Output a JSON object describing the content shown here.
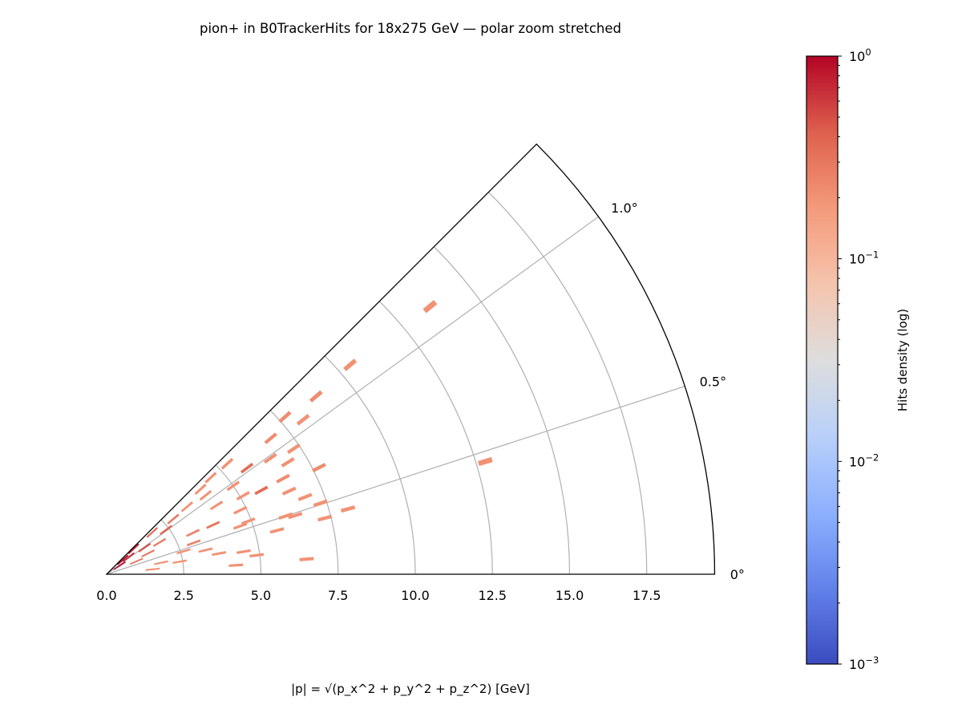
{
  "chart_data": {
    "type": "heatmap",
    "projection": "polar (wedge, angle stretched)",
    "title": "pion+ in B0TrackerHits for 18x275 GeV — polar zoom stretched",
    "xlabel": "|p| = √(p_x^2 + p_y^2 + p_z^2) [GeV]",
    "r_range": [
      0,
      19.7
    ],
    "theta_range_deg": [
      0,
      1.25
    ],
    "r_ticks": [
      "0.0",
      "2.5",
      "5.0",
      "7.5",
      "10.0",
      "12.5",
      "15.0",
      "17.5"
    ],
    "r_tick_values": [
      0,
      2.5,
      5,
      7.5,
      10,
      12.5,
      15,
      17.5
    ],
    "theta_ticks": [
      "0°",
      "0.5°",
      "1.0°"
    ],
    "theta_tick_values": [
      0,
      0.5,
      1.0
    ],
    "grid": true,
    "colorbar": {
      "label": "Hits density (log)",
      "colormap": "coolwarm",
      "scale": "log",
      "range": [
        0.001,
        1
      ],
      "ticks": [
        {
          "value": 1,
          "base": "10",
          "exp": "0"
        },
        {
          "value": 0.1,
          "base": "10",
          "exp": "−1"
        },
        {
          "value": 0.01,
          "base": "10",
          "exp": "−2"
        },
        {
          "value": 0.001,
          "base": "10",
          "exp": "−3"
        }
      ],
      "placement": "right"
    },
    "cells": [
      {
        "p": 13.6,
        "theta": 1.1,
        "d": 0.2
      },
      {
        "p": 10.4,
        "theta": 1.13,
        "d": 0.2
      },
      {
        "p": 8.9,
        "theta": 1.12,
        "d": 0.22
      },
      {
        "p": 7.7,
        "theta": 1.15,
        "d": 0.22
      },
      {
        "p": 8.1,
        "theta": 1.06,
        "d": 0.2
      },
      {
        "p": 6.9,
        "theta": 1.1,
        "d": 0.22
      },
      {
        "p": 7.3,
        "theta": 0.94,
        "d": 0.2
      },
      {
        "p": 6.9,
        "theta": 0.88,
        "d": 0.2
      },
      {
        "p": 7.7,
        "theta": 0.74,
        "d": 0.22
      },
      {
        "p": 6.5,
        "theta": 0.98,
        "d": 0.2
      },
      {
        "p": 5.7,
        "theta": 1.03,
        "d": 0.35
      },
      {
        "p": 5.3,
        "theta": 1.18,
        "d": 0.2
      },
      {
        "p": 6.5,
        "theta": 0.79,
        "d": 0.22
      },
      {
        "p": 6.5,
        "theta": 0.68,
        "d": 0.2
      },
      {
        "p": 6.9,
        "theta": 0.59,
        "d": 0.2
      },
      {
        "p": 7.3,
        "theta": 0.51,
        "d": 0.2
      },
      {
        "p": 8.1,
        "theta": 0.42,
        "d": 0.2
      },
      {
        "p": 7.3,
        "theta": 0.4,
        "d": 0.2
      },
      {
        "p": 12.8,
        "theta": 0.46,
        "d": 0.2
      },
      {
        "p": 6.4,
        "theta": 0.48,
        "d": 0.2
      },
      {
        "p": 6.1,
        "theta": 0.5,
        "d": 0.2
      },
      {
        "p": 5.7,
        "theta": 0.4,
        "d": 0.2
      },
      {
        "p": 5.7,
        "theta": 0.79,
        "d": 0.35
      },
      {
        "p": 5.1,
        "theta": 0.83,
        "d": 0.2
      },
      {
        "p": 4.8,
        "theta": 0.71,
        "d": 0.2
      },
      {
        "p": 4.9,
        "theta": 0.57,
        "d": 0.2
      },
      {
        "p": 3.8,
        "theta": 0.69,
        "d": 0.3
      },
      {
        "p": 4.6,
        "theta": 0.55,
        "d": 0.2
      },
      {
        "p": 6.5,
        "theta": 0.12,
        "d": 0.2
      },
      {
        "p": 4.9,
        "theta": 0.2,
        "d": 0.2
      },
      {
        "p": 4.2,
        "theta": 0.11,
        "d": 0.2
      },
      {
        "p": 4.5,
        "theta": 0.26,
        "d": 0.2
      },
      {
        "p": 3.7,
        "theta": 0.29,
        "d": 0.2
      },
      {
        "p": 3.3,
        "theta": 0.38,
        "d": 0.2
      },
      {
        "p": 2.6,
        "theta": 0.46,
        "d": 0.2
      },
      {
        "p": 3.1,
        "theta": 0.71,
        "d": 0.25
      },
      {
        "p": 4.1,
        "theta": 1.07,
        "d": 0.2
      },
      {
        "p": 4.1,
        "theta": 1.17,
        "d": 0.2
      },
      {
        "p": 3.4,
        "theta": 1.11,
        "d": 0.2
      },
      {
        "p": 4.6,
        "theta": 1.19,
        "d": 0.2
      },
      {
        "p": 5.0,
        "theta": 0.97,
        "d": 0.2
      },
      {
        "p": 4.2,
        "theta": 0.89,
        "d": 0.2
      },
      {
        "p": 2.8,
        "theta": 1.1,
        "d": 0.3
      },
      {
        "p": 2.0,
        "theta": 0.86,
        "d": 0.3
      },
      {
        "p": 1.5,
        "theta": 0.74,
        "d": 0.3
      },
      {
        "p": 1.05,
        "theta": 0.65,
        "d": 0.3
      },
      {
        "p": 2.4,
        "theta": 1.02,
        "d": 0.4
      },
      {
        "p": 1.5,
        "theta": 0.97,
        "d": 0.5
      },
      {
        "p": 0.9,
        "theta": 1.05,
        "d": 0.7
      },
      {
        "p": 1.8,
        "theta": 0.33,
        "d": 0.2
      },
      {
        "p": 1.5,
        "theta": 0.17,
        "d": 0.2
      },
      {
        "p": 0.5,
        "theta": 0.92,
        "d": 0.9
      },
      {
        "p": 2.4,
        "theta": 0.27,
        "d": 0.2
      },
      {
        "p": 1.2,
        "theta": 1.2,
        "d": 0.8
      },
      {
        "p": 0.7,
        "theta": 1.15,
        "d": 1.0
      },
      {
        "p": 2.0,
        "theta": 1.18,
        "d": 0.35
      },
      {
        "p": 3.0,
        "theta": 0.55,
        "d": 0.25
      }
    ]
  }
}
